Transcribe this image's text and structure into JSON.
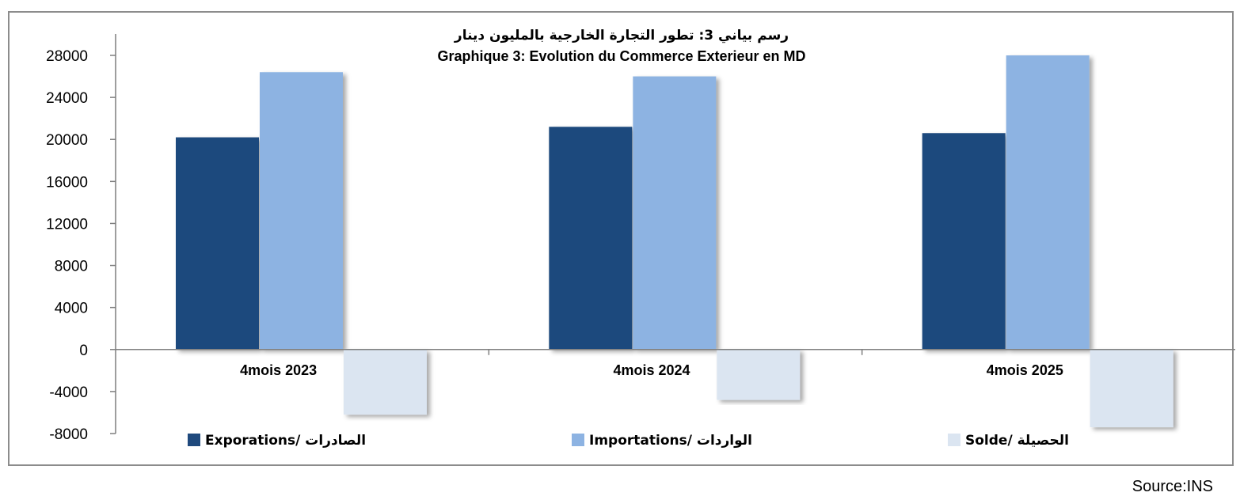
{
  "chart_data": {
    "type": "bar",
    "title": "رسم بياني 3:  تطور التجارة الخارجية بالمليون دينار",
    "subtitle": "Graphique 3: Evolution du Commerce Exterieur en MD",
    "categories": [
      "4mois 2023",
      "4mois 2024",
      "4mois 2025"
    ],
    "series": [
      {
        "name": "Exporations/  الصادرات",
        "values": [
          20200,
          21200,
          20600
        ],
        "color": "#1f497d"
      },
      {
        "name": "Importations/ الواردات",
        "values": [
          26400,
          26000,
          28000
        ],
        "color": "#8db3e2"
      },
      {
        "name": "Solde/ الحصيلة",
        "values": [
          -6200,
          -4800,
          -7400
        ],
        "color": "#dbe5f1"
      }
    ],
    "yticks": [
      28000,
      24000,
      20000,
      16000,
      12000,
      8000,
      4000,
      0,
      -4000,
      -8000
    ],
    "ylim": [
      -8000,
      28000
    ],
    "grid": false,
    "legend_position": "bottom",
    "xlabel": "",
    "ylabel": ""
  },
  "source": "Source:INS"
}
